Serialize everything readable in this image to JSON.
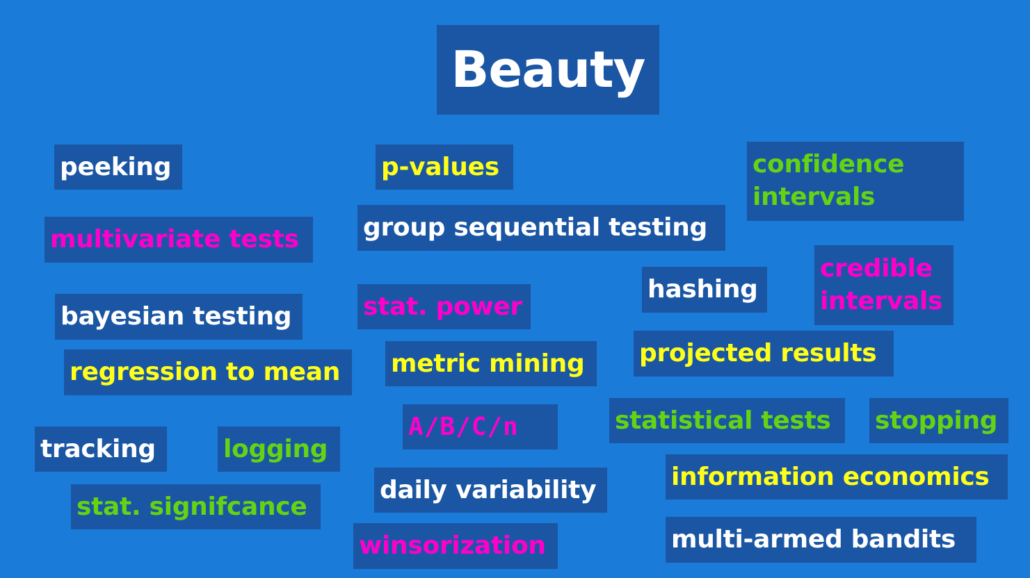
{
  "title": "Beauty",
  "colors": {
    "background": "#1a7bd9",
    "box": "#1a56a4",
    "white": "#ffffff",
    "yellow": "#ffff1a",
    "green": "#64d314",
    "magenta": "#ff00cc"
  },
  "terms": {
    "peeking": "peeking",
    "p_values": "p-values",
    "confidence_line1": "confidence",
    "confidence_line2": "intervals",
    "multivariate_tests": "multivariate tests",
    "group_sequential_testing": "group sequential testing",
    "credible_line1": "credible",
    "credible_line2": "intervals",
    "hashing": "hashing",
    "bayesian_testing": "bayesian testing",
    "stat_power": "stat. power",
    "regression_to_mean": "regression to mean",
    "metric_mining": "metric mining",
    "projected_results": "projected results",
    "abcn": "A/B/C/n",
    "statistical_tests": "statistical tests",
    "stopping": "stopping",
    "tracking": "tracking",
    "logging": "logging",
    "information_economics": "information economics",
    "daily_variability": "daily variability",
    "stat_signifcance": "stat. signifcance",
    "multi_armed_bandits": "multi-armed bandits",
    "winsorization": "winsorization"
  }
}
